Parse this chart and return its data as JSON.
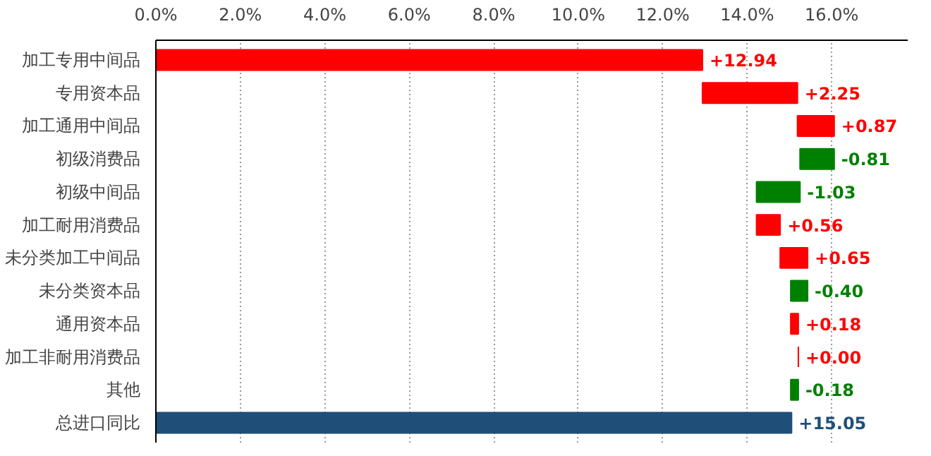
{
  "chart_data": {
    "type": "bar",
    "orientation": "horizontal",
    "categories": [
      "加工专用中间品",
      "专用资本品",
      "加工通用中间品",
      "初级消费品",
      "初级中间品",
      "加工耐用消费品",
      "未分类加工中间品",
      "未分类资本品",
      "通用资本品",
      "加工非耐用消费品",
      "其他",
      "总进口同比"
    ],
    "values": [
      12.94,
      2.25,
      0.87,
      -0.81,
      -1.03,
      0.56,
      0.65,
      -0.4,
      0.18,
      0.0,
      -0.18,
      15.05
    ],
    "base": [
      0,
      12.94,
      15.19,
      16.06,
      15.25,
      14.22,
      14.78,
      15.43,
      15.03,
      15.21,
      15.21,
      0
    ],
    "colors": [
      "#ff0000",
      "#ff0000",
      "#ff0000",
      "#008000",
      "#008000",
      "#ff0000",
      "#ff0000",
      "#008000",
      "#ff0000",
      "#ff0000",
      "#008000",
      "#1f4e79"
    ],
    "value_labels": [
      "+12.94",
      "+2.25",
      "+0.87",
      "-0.81",
      "-1.03",
      "+0.56",
      "+0.65",
      "-0.40",
      "+0.18",
      "+0.00",
      "-0.18",
      "+15.05"
    ],
    "xlim": [
      0,
      17.8
    ],
    "xticks": [
      {
        "value": 0,
        "label": "0.0%"
      },
      {
        "value": 2,
        "label": "2.0%"
      },
      {
        "value": 4,
        "label": "4.0%"
      },
      {
        "value": 6,
        "label": "6.0%"
      },
      {
        "value": 8,
        "label": "8.0%"
      },
      {
        "value": 10,
        "label": "10.0%"
      },
      {
        "value": 12,
        "label": "12.0%"
      },
      {
        "value": 14,
        "label": "14.0%"
      },
      {
        "value": 16,
        "label": "16.0%"
      }
    ],
    "grid": "x"
  }
}
